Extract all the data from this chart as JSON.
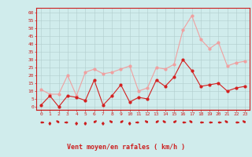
{
  "x": [
    0,
    1,
    2,
    3,
    4,
    5,
    6,
    7,
    8,
    9,
    10,
    11,
    12,
    13,
    14,
    15,
    16,
    17,
    18,
    19,
    20,
    21,
    22,
    23
  ],
  "wind_avg": [
    1,
    7,
    0,
    7,
    6,
    4,
    17,
    1,
    7,
    14,
    3,
    6,
    5,
    17,
    13,
    19,
    30,
    23,
    13,
    14,
    15,
    10,
    12,
    13
  ],
  "wind_gust": [
    11,
    8,
    8,
    20,
    7,
    22,
    24,
    21,
    22,
    24,
    26,
    10,
    12,
    25,
    24,
    27,
    49,
    58,
    43,
    37,
    41,
    26,
    28,
    29
  ],
  "avg_color": "#d42020",
  "gust_color": "#f0a0a0",
  "bg_color": "#d0ecec",
  "grid_color": "#b0cccc",
  "axis_color": "#cc2020",
  "xlabel": "Vent moyen/en rafales ( km/h )",
  "yticks": [
    0,
    5,
    10,
    15,
    20,
    25,
    30,
    35,
    40,
    45,
    50,
    55,
    60
  ],
  "ylim": [
    -2,
    63
  ],
  "xlim": [
    -0.5,
    23.5
  ],
  "arrow_angles": [
    90,
    180,
    315,
    270,
    180,
    180,
    45,
    180,
    315,
    45,
    180,
    270,
    315,
    45,
    315,
    45,
    90,
    315,
    90,
    90,
    90,
    315,
    90,
    315
  ]
}
